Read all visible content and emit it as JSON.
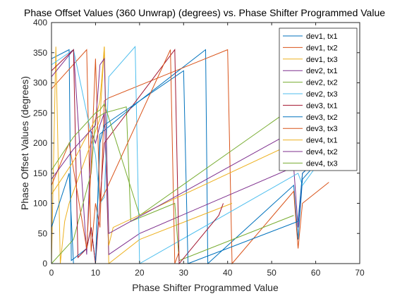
{
  "chart_data": {
    "type": "line",
    "title": "Phase Offset Values (360 Unwrap) (degrees) vs. Phase Shifter Programmed Value",
    "xlabel": "Phase Shifter Programmed Value",
    "ylabel": "Phase Offset Values (degrees)",
    "xlim": [
      0,
      70
    ],
    "ylim": [
      0,
      400
    ],
    "xticks": [
      0,
      10,
      20,
      30,
      40,
      50,
      60,
      70
    ],
    "yticks": [
      0,
      50,
      100,
      150,
      200,
      250,
      300,
      350,
      400
    ],
    "grid": false,
    "legend_position": "top-right",
    "series": [
      {
        "name": "dev1, tx1",
        "color": "#0072BD",
        "x": [
          0,
          4,
          4.5,
          8,
          9,
          10,
          11,
          20,
          35,
          35.5,
          55,
          56,
          57,
          60
        ],
        "y": [
          340,
          355,
          5,
          25,
          60,
          0,
          215,
          270,
          355,
          0,
          130,
          40,
          140,
          165
        ]
      },
      {
        "name": "dev1, tx2",
        "color": "#D95319",
        "x": [
          0,
          8,
          9,
          10,
          11,
          12,
          13,
          40,
          41,
          55,
          56,
          57,
          63
        ],
        "y": [
          290,
          355,
          20,
          100,
          60,
          270,
          275,
          355,
          0,
          120,
          25,
          100,
          135
        ]
      },
      {
        "name": "dev1, tx3",
        "color": "#EDB120",
        "x": [
          0,
          1,
          2,
          3,
          4,
          5,
          6,
          7,
          8,
          9,
          10,
          11,
          12,
          13,
          20,
          41
        ],
        "y": [
          0,
          360,
          0,
          70,
          100,
          120,
          140,
          160,
          180,
          200,
          220,
          240,
          360,
          0,
          40,
          100
        ]
      },
      {
        "name": "dev2, tx1",
        "color": "#7E2F8E",
        "x": [
          0,
          5,
          8,
          9,
          10,
          11,
          12,
          13,
          20,
          55,
          56,
          57,
          60
        ],
        "y": [
          310,
          355,
          15,
          220,
          200,
          230,
          250,
          15,
          50,
          160,
          60,
          150,
          170
        ]
      },
      {
        "name": "dev2, tx2",
        "color": "#77AC30",
        "x": [
          0,
          5,
          9,
          10,
          11,
          12,
          17,
          18,
          28,
          29,
          55
        ],
        "y": [
          0,
          40,
          150,
          240,
          245,
          250,
          260,
          70,
          100,
          5,
          80
        ]
      },
      {
        "name": "dev2, tx3",
        "color": "#4DBEEE",
        "x": [
          0,
          5,
          10,
          11,
          12,
          13,
          19,
          20,
          56,
          57,
          60
        ],
        "y": [
          330,
          355,
          180,
          100,
          110,
          310,
          360,
          0,
          150,
          130,
          160
        ]
      },
      {
        "name": "dev3, tx1",
        "color": "#A2142F",
        "x": [
          0,
          5,
          6,
          8,
          9,
          10,
          12,
          28,
          29,
          38,
          39
        ],
        "y": [
          320,
          355,
          10,
          25,
          60,
          0,
          200,
          355,
          0,
          80,
          100
        ]
      },
      {
        "name": "dev3, tx2",
        "color": "#0072BD",
        "x": [
          0,
          4,
          5,
          10,
          11,
          12,
          30,
          31,
          56,
          57,
          60
        ],
        "y": [
          60,
          150,
          0,
          0,
          200,
          230,
          320,
          0,
          70,
          150,
          170
        ]
      },
      {
        "name": "dev3, tx3",
        "color": "#D95319",
        "x": [
          0,
          4,
          8,
          9,
          10,
          11,
          27,
          28,
          29
        ],
        "y": [
          130,
          200,
          25,
          160,
          340,
          100,
          355,
          0,
          20
        ]
      },
      {
        "name": "dev4, tx1",
        "color": "#EDB120",
        "x": [
          0,
          5,
          10,
          11,
          12,
          13,
          14,
          55
        ],
        "y": [
          115,
          170,
          240,
          270,
          360,
          30,
          60,
          200
        ]
      },
      {
        "name": "dev4, tx2",
        "color": "#7E2F8E",
        "x": [
          0,
          5,
          10,
          11,
          12,
          13,
          55,
          56,
          57
        ],
        "y": [
          140,
          190,
          230,
          330,
          340,
          50,
          220,
          190,
          210
        ]
      },
      {
        "name": "dev4, tx3",
        "color": "#77AC30",
        "x": [
          0,
          5,
          10,
          11,
          12,
          20,
          55
        ],
        "y": [
          155,
          210,
          250,
          255,
          265,
          80,
          260
        ]
      }
    ]
  }
}
